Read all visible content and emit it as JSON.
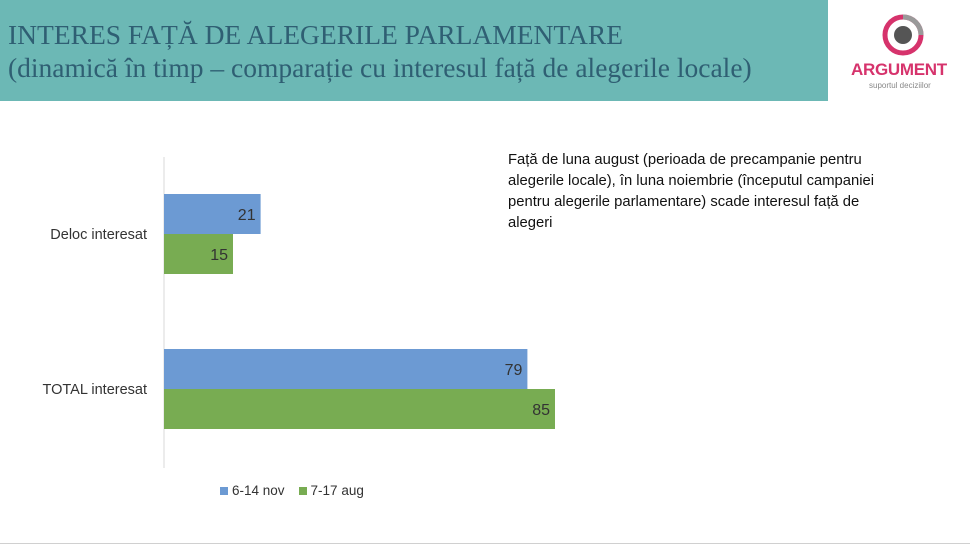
{
  "header": {
    "title_line1": "INTERES FAȚĂ DE ALEGERILE PARLAMENTARE",
    "title_line2": "(dinamică în timp – comparație cu interesul față de alegerile locale)"
  },
  "logo": {
    "name": "ARGUMENT",
    "tagline": "suportul deciziilor"
  },
  "note": "Față de luna august (perioada de precampanie pentru alegerile locale), în luna noiembrie (începutul campaniei pentru alegerile parlamentare) scade interesul față de alegeri",
  "chart_data": {
    "type": "bar",
    "orientation": "horizontal",
    "categories": [
      "Deloc interesat",
      "TOTAL interesat"
    ],
    "series": [
      {
        "name": "6-14 nov",
        "values": [
          21,
          79
        ],
        "color": "#6c9ad3"
      },
      {
        "name": "7-17 aug",
        "values": [
          15,
          85
        ],
        "color": "#78ac52"
      }
    ],
    "xlim": [
      0,
      100
    ],
    "grid": false,
    "data_labels": true,
    "legend_position": "bottom"
  }
}
